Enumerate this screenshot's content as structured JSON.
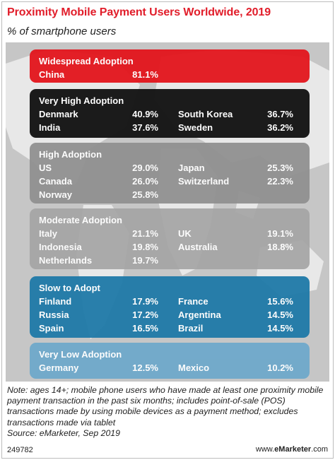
{
  "title": "Proximity Mobile Payment Users Worldwide, 2019",
  "subtitle": "% of smartphone users",
  "chart_data": {
    "type": "table",
    "groups": [
      {
        "name": "Widespread Adoption",
        "color": "#e3151c",
        "entries": [
          {
            "country": "China",
            "value": "81.1%"
          }
        ]
      },
      {
        "name": "Very High Adoption",
        "color": "#111111",
        "entries": [
          {
            "country": "Denmark",
            "value": "40.9%"
          },
          {
            "country": "South Korea",
            "value": "36.7%"
          },
          {
            "country": "India",
            "value": "37.6%"
          },
          {
            "country": "Sweden",
            "value": "36.2%"
          }
        ]
      },
      {
        "name": "High Adoption",
        "color": "#8f8f8f",
        "entries": [
          {
            "country": "US",
            "value": "29.0%"
          },
          {
            "country": "Japan",
            "value": "25.3%"
          },
          {
            "country": "Canada",
            "value": "26.0%"
          },
          {
            "country": "Switzerland",
            "value": "22.3%"
          },
          {
            "country": "Norway",
            "value": "25.8%"
          }
        ]
      },
      {
        "name": "Moderate Adoption",
        "color": "#a5a5a5",
        "entries": [
          {
            "country": "Italy",
            "value": "21.1%"
          },
          {
            "country": "UK",
            "value": "19.1%"
          },
          {
            "country": "Indonesia",
            "value": "19.8%"
          },
          {
            "country": "Australia",
            "value": "18.8%"
          },
          {
            "country": "Netherlands",
            "value": "19.7%"
          }
        ]
      },
      {
        "name": "Slow to Adopt",
        "color": "#1f7aa8",
        "entries": [
          {
            "country": "Finland",
            "value": "17.9%"
          },
          {
            "country": "France",
            "value": "15.6%"
          },
          {
            "country": "Russia",
            "value": "17.2%"
          },
          {
            "country": "Argentina",
            "value": "14.5%"
          },
          {
            "country": "Spain",
            "value": "16.5%"
          },
          {
            "country": "Brazil",
            "value": "14.5%"
          }
        ]
      },
      {
        "name": "Very Low Adoption",
        "color": "#6fa9cb",
        "entries": [
          {
            "country": "Germany",
            "value": "12.5%"
          },
          {
            "country": "Mexico",
            "value": "10.2%"
          }
        ]
      }
    ]
  },
  "note": "Note: ages 14+; mobile phone users who have made at least one proximity mobile payment transaction in the past six months; includes point-of-sale (POS) transactions made by using mobile devices as a payment method; excludes transactions made via tablet",
  "source": "Source: eMarketer, Sep 2019",
  "chart_id": "249782",
  "brand": {
    "prefix": "www.",
    "name": "eMarketer",
    "suffix": ".com"
  }
}
